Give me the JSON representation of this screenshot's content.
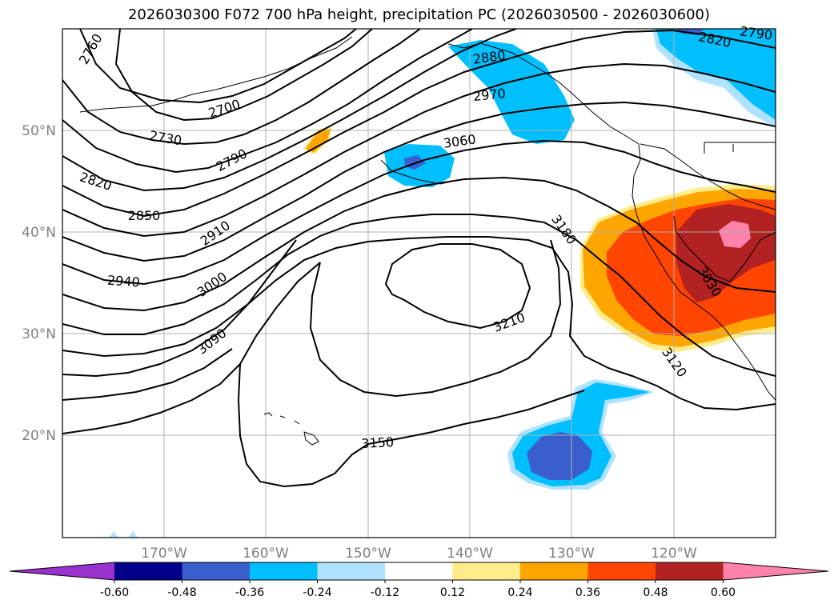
{
  "title": "2026030300 F072 700 hPa height, precipitation PC (2026030500 - 2026030600)",
  "lat_labels": [
    "50°N",
    "40°N",
    "30°N",
    "20°N"
  ],
  "lon_labels": [
    "170°W",
    "160°W",
    "150°W",
    "140°W",
    "130°W",
    "120°W"
  ],
  "contour_labels": [
    "2760",
    "2700",
    "2730",
    "2790",
    "2820",
    "2850",
    "2910",
    "2940",
    "3000",
    "3090",
    "2880",
    "2970",
    "3060",
    "3180",
    "3210",
    "3150",
    "3030",
    "3120",
    "2820",
    "2790"
  ],
  "colorbar": {
    "labels": [
      "-0.60",
      "-0.48",
      "-0.36",
      "-0.24",
      "-0.12",
      "0.12",
      "0.24",
      "0.36",
      "0.48",
      "0.60"
    ],
    "colors": [
      "#9932CC",
      "#00008B",
      "#3A5FCD",
      "#00BFFF",
      "#B0E2FF",
      "#FFFFFF",
      "#FFEC8B",
      "#FFA500",
      "#FF4500",
      "#B22222",
      "#FF82AB"
    ]
  }
}
